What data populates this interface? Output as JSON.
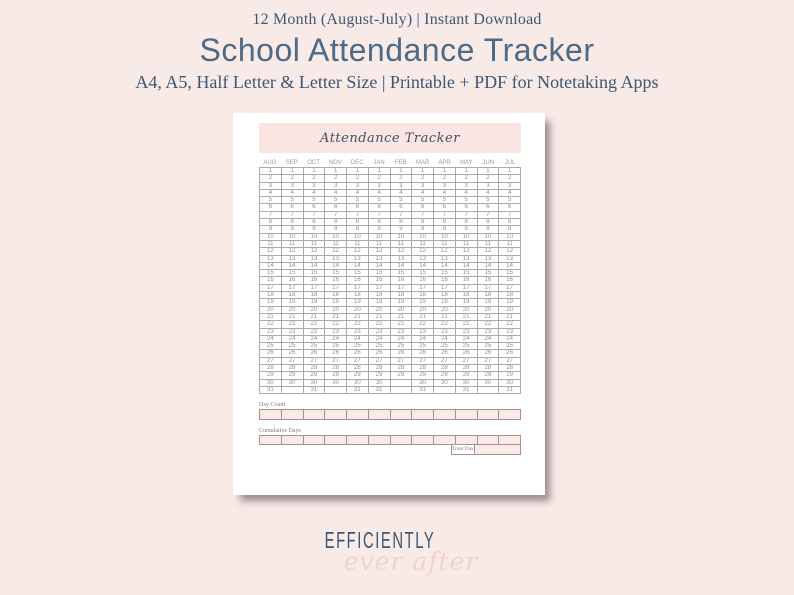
{
  "colors": {
    "background": "#f7eae7",
    "heading_blue": "#4d6a87",
    "serif_navy": "#3d5774",
    "banner_pink": "#fbe5e2",
    "script_navy": "#3f4f63",
    "cell_pink": "#faeae7",
    "grid_border": "#ababab",
    "pink_border": "#a79292",
    "grid_text": "#8f8f8f",
    "label_text": "#857777",
    "logo_navy": "#3d5674",
    "logo_pink": "#f1d3ce"
  },
  "header": {
    "tagline": "12 Month (August-July) | Instant Download",
    "title": "School Attendance Tracker",
    "subtitle": "A4, A5, Half Letter & Letter Size | Printable + PDF for Notetaking Apps"
  },
  "document": {
    "banner_title": "Attendance Tracker",
    "table": {
      "months": [
        "AUG",
        "SEP",
        "OCT",
        "NOV",
        "DEC",
        "JAN",
        "FEB",
        "MAR",
        "APR",
        "MAY",
        "JUN",
        "JUL"
      ],
      "days_in_month": [
        31,
        30,
        31,
        30,
        31,
        31,
        29,
        31,
        30,
        31,
        30,
        31
      ],
      "max_day": 31
    },
    "footer": {
      "day_count_label": "Day Count",
      "cumulative_label": "Cumulative Days",
      "total_label": "Total Days"
    }
  },
  "logo": {
    "line1": "EFFICIENTLY",
    "line2": "ever after"
  }
}
